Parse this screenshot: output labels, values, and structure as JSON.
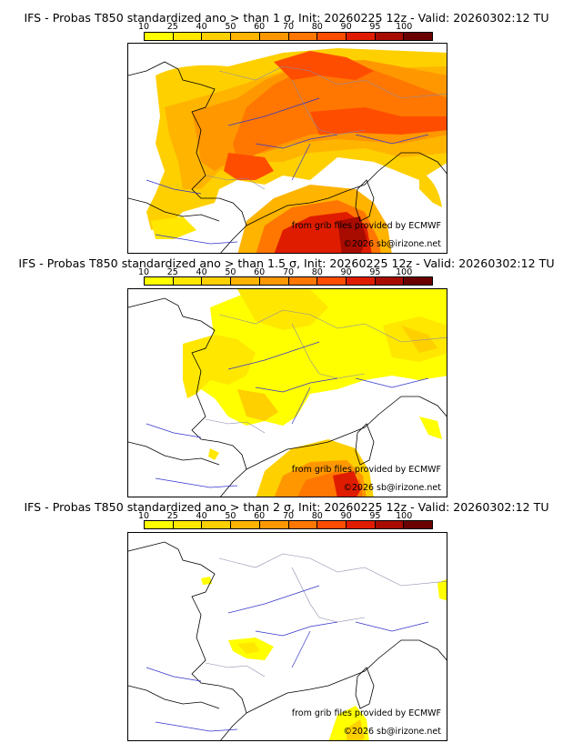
{
  "colorbar": {
    "ticks": [
      "10",
      "25",
      "40",
      "50",
      "60",
      "70",
      "80",
      "90",
      "95",
      "100"
    ],
    "colors": [
      "#ffff00",
      "#ffe700",
      "#ffd000",
      "#ffb400",
      "#ff9800",
      "#ff7700",
      "#ff4d00",
      "#e01c00",
      "#a80b00",
      "#6b0000"
    ]
  },
  "panels": [
    {
      "title": "IFS - Probas T850  standardized ano > than 1 σ, Init: 20260225 12z - Valid: 20260302:12 TU",
      "credit": "from grib files provided by ECMWF",
      "copyright": "©2026 sb@irizone.net"
    },
    {
      "title": "IFS - Probas T850  standardized ano > than 1.5 σ, Init: 20260225 12z - Valid: 20260302:12 TU",
      "credit": "from grib files provided by ECMWF",
      "copyright": "©2026 sb@irizone.net"
    },
    {
      "title": "IFS - Probas T850  standardized ano > than 2 σ, Init: 20260225 12z - Valid: 20260302:12 TU",
      "credit": "from grib files provided by ECMWF",
      "copyright": "©2026 sb@irizone.net"
    }
  ]
}
